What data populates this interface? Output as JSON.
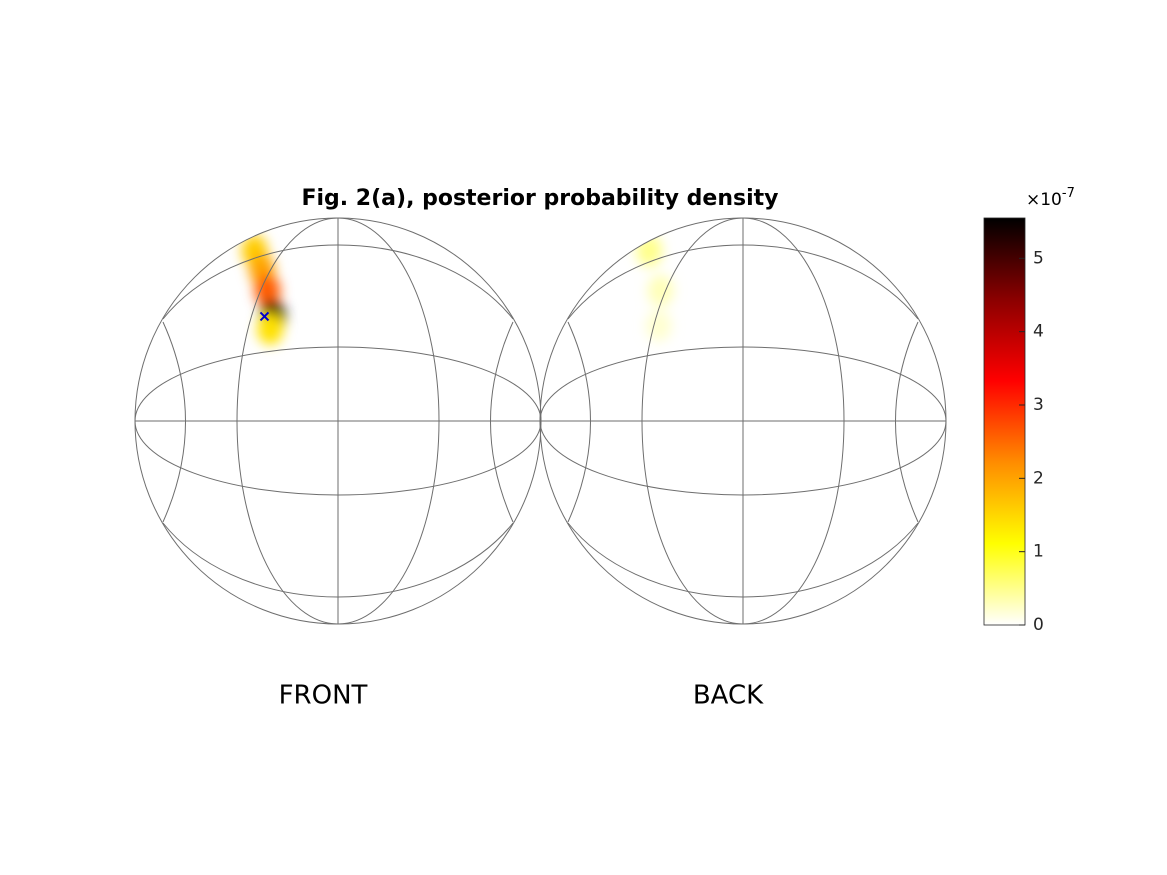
{
  "chart_data": {
    "type": "sphere-density",
    "title": "Fig. 2(a), posterior probability density",
    "panels": [
      {
        "label": "FRONT",
        "points": [
          {
            "lon": -49,
            "lat": 57,
            "value": 1.6
          },
          {
            "lon": -34,
            "lat": 48,
            "value": 2.0
          },
          {
            "lon": -27,
            "lat": 40,
            "value": 2.6
          },
          {
            "lon": -22,
            "lat": 31,
            "value": 5.5
          },
          {
            "lon": -22,
            "lat": 27,
            "value": 1.4
          }
        ],
        "marker": {
          "lon": -25,
          "lat": 31,
          "color": "#0000cc"
        }
      },
      {
        "label": "BACK",
        "points": [
          {
            "lon": -58,
            "lat": 57,
            "value": 0.5
          },
          {
            "lon": -32,
            "lat": 40,
            "value": 0.3
          },
          {
            "lon": -28,
            "lat": 28,
            "value": 0.2
          }
        ]
      }
    ],
    "colormap": [
      "#ffffff",
      "#ffff00",
      "#ff8c00",
      "#ff0000",
      "#8b0000",
      "#000000"
    ],
    "clim": [
      0,
      5.55
    ],
    "cticks": [
      0,
      1,
      2,
      3,
      4,
      5
    ],
    "colorbar_exponent_base": "×10",
    "colorbar_exponent_power": "-7"
  }
}
